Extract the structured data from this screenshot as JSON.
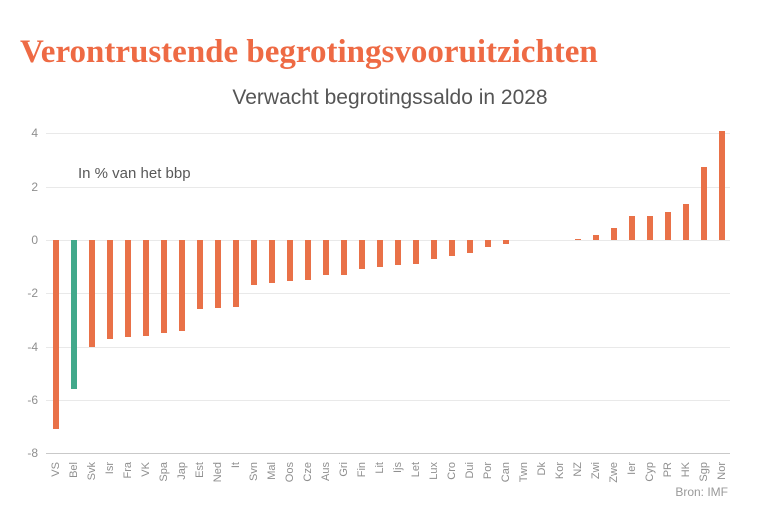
{
  "header": {
    "title": "Verontrustende begrotingsvooruitzichten",
    "title_color": "#ee6a44"
  },
  "chart": {
    "subtitle": "Verwacht begrotingssaldo in 2028",
    "unit_label": "In % van het bbp",
    "source": "Bron: IMF"
  },
  "chart_data": {
    "type": "bar",
    "title": "Verwacht begrotingssaldo in 2028",
    "ylabel": "In % van het bbp",
    "xlabel": "",
    "ylim": [
      -8,
      4
    ],
    "yticks": [
      4,
      2,
      0,
      -2,
      -4,
      -6,
      -8
    ],
    "grid": true,
    "legend": "none",
    "categories": [
      "VS",
      "Bel",
      "Svk",
      "Isr",
      "Fra",
      "VK",
      "Spa",
      "Jap",
      "Est",
      "Ned",
      "It",
      "Svn",
      "Mal",
      "Oos",
      "Cze",
      "Aus",
      "Gri",
      "Fin",
      "Lit",
      "Ijs",
      "Let",
      "Lux",
      "Cro",
      "Dui",
      "Por",
      "Can",
      "Twn",
      "Dk",
      "Kor",
      "NZ",
      "Zwi",
      "Zwe",
      "Ier",
      "Cyp",
      "PR",
      "HK",
      "Sgp",
      "Nor"
    ],
    "values": [
      -7.1,
      -5.6,
      -4.0,
      -3.7,
      -3.65,
      -3.6,
      -3.5,
      -3.4,
      -2.6,
      -2.55,
      -2.5,
      -1.7,
      -1.6,
      -1.55,
      -1.5,
      -1.3,
      -1.3,
      -1.1,
      -1.0,
      -0.95,
      -0.9,
      -0.7,
      -0.6,
      -0.5,
      -0.25,
      -0.15,
      0,
      0,
      0,
      0.05,
      0.2,
      0.45,
      0.9,
      0.9,
      1.05,
      1.35,
      2.75,
      4.1
    ],
    "bar_color": "#e97148",
    "highlight_category": "Bel",
    "highlight_color": "#42a98b",
    "source": "Bron: IMF"
  }
}
